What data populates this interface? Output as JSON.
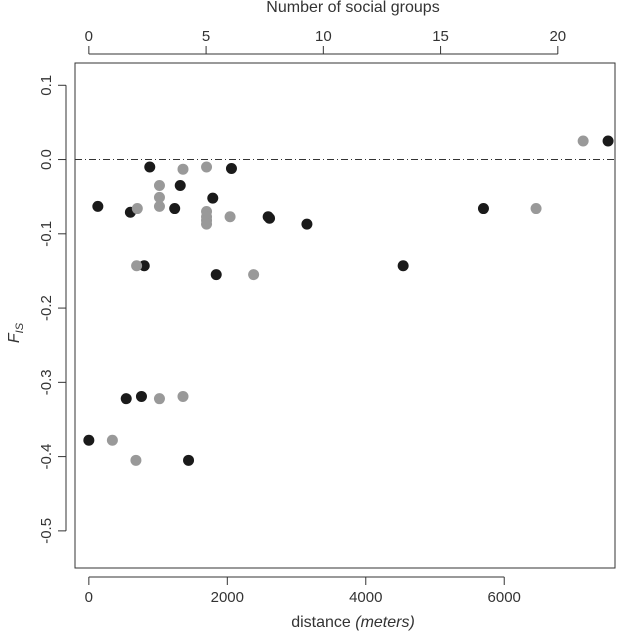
{
  "chart_data": {
    "type": "scatter",
    "xlabel": "distance",
    "xlabel_unit": "(meters)",
    "ylabel_main": "F",
    "ylabel_sub": "IS",
    "top_axis_label": "Number of social groups",
    "xlim": [
      -200,
      7600
    ],
    "ylim": [
      -0.55,
      0.13
    ],
    "x_ticks": [
      0,
      2000,
      4000,
      6000
    ],
    "x_tick_labels": [
      "0",
      "2000",
      "4000",
      "6000"
    ],
    "y_ticks": [
      0.1,
      0.0,
      -0.1,
      -0.2,
      -0.3,
      -0.4,
      -0.5
    ],
    "y_tick_labels": [
      "0.1",
      "0.0",
      "-0.1",
      "-0.2",
      "-0.3",
      "-0.4",
      "-0.5"
    ],
    "top_ticks": [
      0,
      5,
      10,
      15,
      20
    ],
    "top_tick_labels": [
      "0",
      "5",
      "10",
      "15",
      "20"
    ],
    "top_axis_meters_per_group": 338.7,
    "reference_line_y": 0.0,
    "grid": false,
    "series": [
      {
        "color": "#1a1a1a",
        "x": [
          0,
          130,
          600,
          800,
          880,
          1240,
          1320,
          1790,
          1840,
          2060,
          2590,
          2610,
          3150,
          4540,
          5700,
          7500
        ],
        "y": [
          -0.378,
          -0.063,
          -0.071,
          -0.143,
          -0.01,
          -0.066,
          -0.035,
          -0.052,
          -0.155,
          -0.012,
          -0.077,
          -0.079,
          -0.087,
          -0.143,
          -0.066,
          0.025
        ]
      },
      {
        "color": "#1a1a1a",
        "x": [
          540,
          760,
          1440
        ],
        "y": [
          -0.322,
          -0.319,
          -0.405
        ]
      },
      {
        "color": "#999999",
        "x": [
          340,
          690,
          700,
          1020,
          1020,
          1020,
          1020,
          1360,
          1360,
          1700,
          1700,
          1700,
          1700,
          1700,
          2040,
          2380,
          6460,
          7140
        ],
        "y": [
          -0.378,
          -0.143,
          -0.066,
          -0.035,
          -0.051,
          -0.063,
          -0.322,
          -0.013,
          -0.319,
          -0.01,
          -0.07,
          -0.077,
          -0.082,
          -0.087,
          -0.077,
          -0.155,
          -0.066,
          0.025
        ]
      },
      {
        "color": "#999999",
        "x": [
          680
        ],
        "y": [
          -0.405
        ]
      }
    ]
  }
}
